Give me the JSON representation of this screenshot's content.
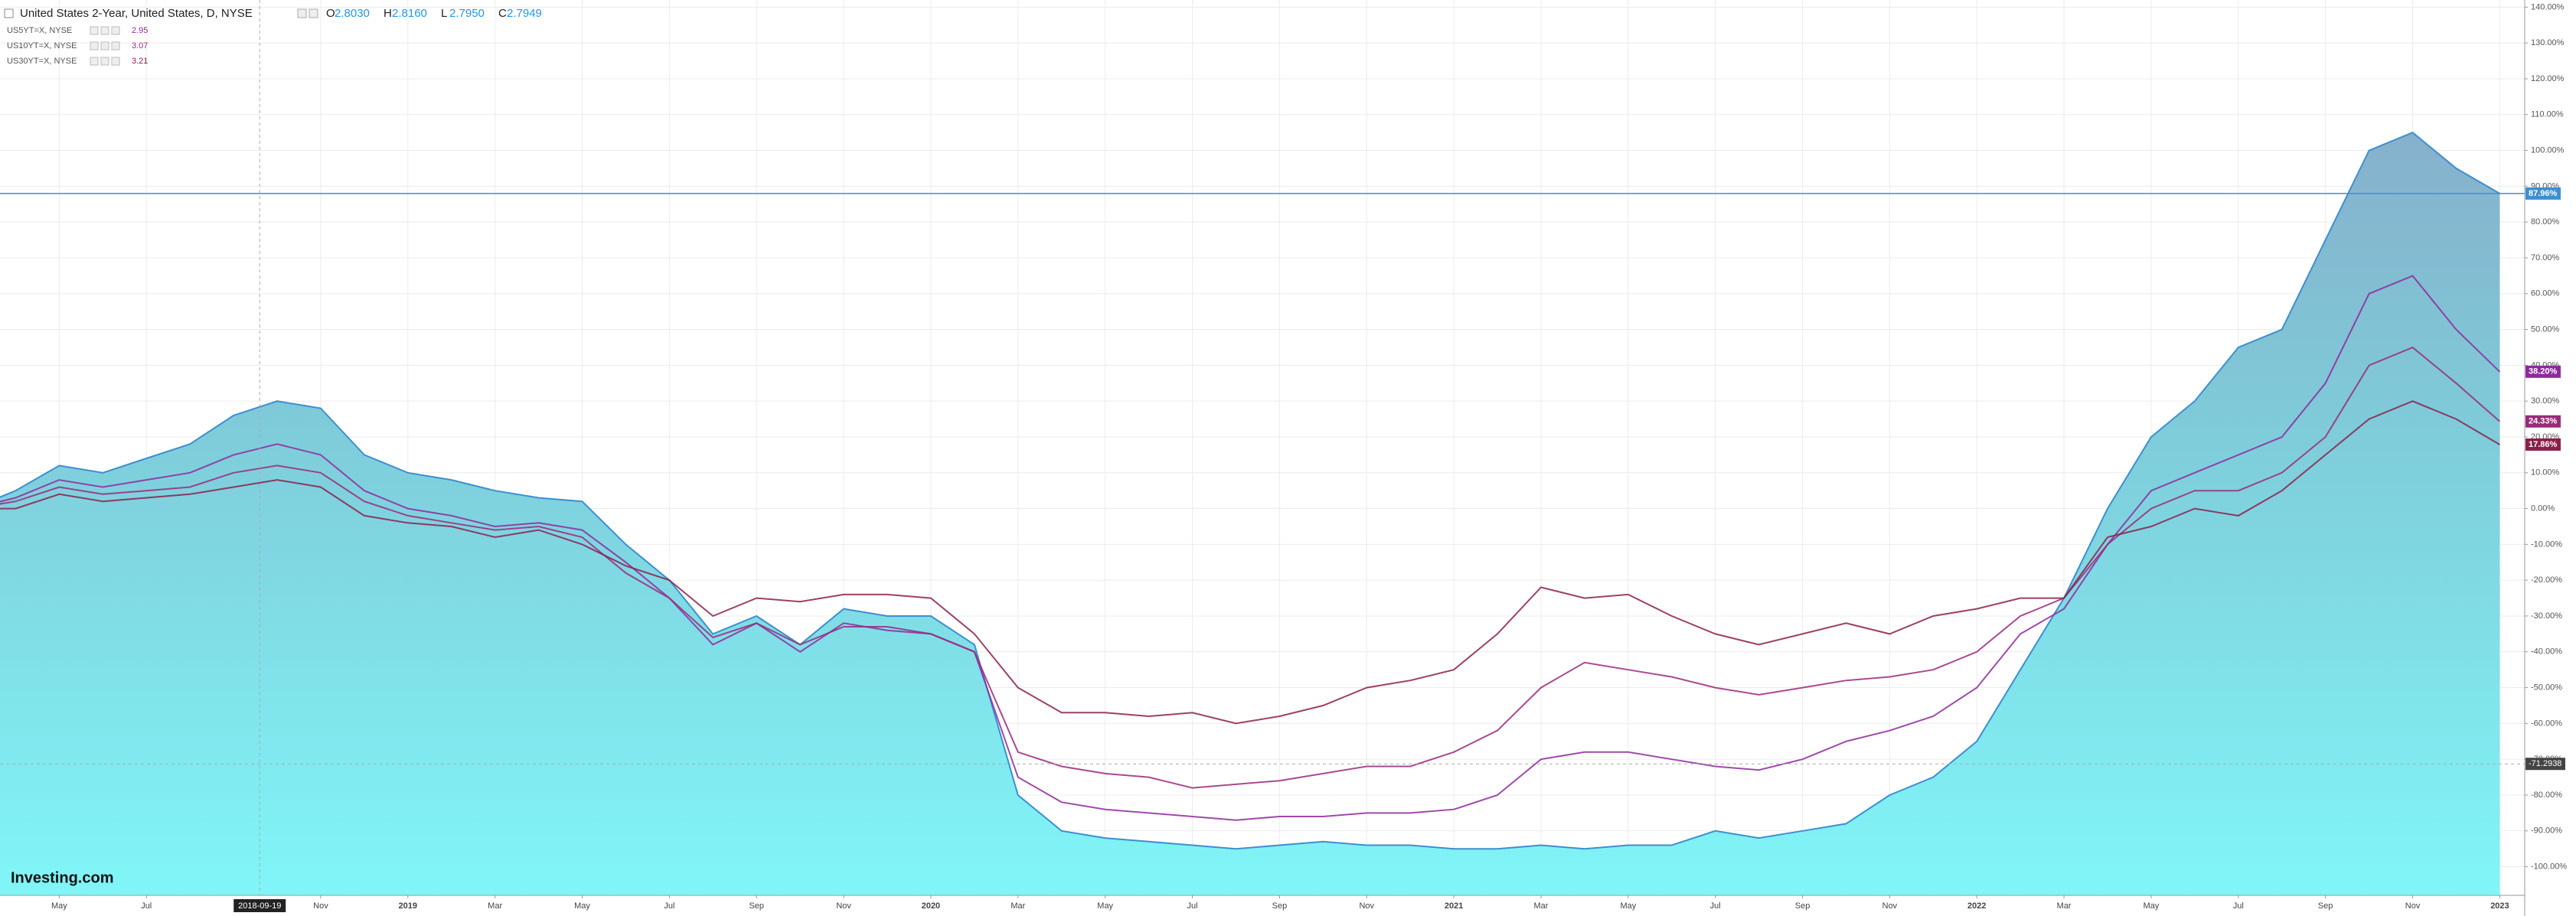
{
  "chart_data": {
    "type": "area",
    "title": "United States 2-Year, United States, D, NYSE",
    "ohlc": [
      {
        "key": "O",
        "value": "2.8030"
      },
      {
        "key": "H",
        "value": "2.8160"
      },
      {
        "key": "L",
        "value": "2.7950"
      },
      {
        "key": "C",
        "value": "2.7949"
      }
    ],
    "logo": "Investing.com",
    "categories": [
      null,
      null,
      "May",
      null,
      "Jul",
      null,
      null,
      null,
      "Nov",
      null,
      "2019",
      null,
      "Mar",
      null,
      "May",
      null,
      "Jul",
      null,
      "Sep",
      null,
      "Nov",
      null,
      "2020",
      null,
      "Mar",
      null,
      "May",
      null,
      "Jul",
      null,
      "Sep",
      null,
      "Nov",
      null,
      "2021",
      null,
      "Mar",
      null,
      "May",
      null,
      "Jul",
      null,
      "Sep",
      null,
      "Nov",
      null,
      "2022",
      null,
      "Mar",
      null,
      "May",
      null,
      "Jul",
      null,
      "Sep",
      null,
      "Nov",
      null,
      "2023"
    ],
    "ylim": [
      -108,
      142
    ],
    "yticks": [
      {
        "value": 140,
        "label": "140.00%"
      },
      {
        "value": 130,
        "label": "130.00%"
      },
      {
        "value": 120,
        "label": "120.00%"
      },
      {
        "value": 110,
        "label": "110.00%"
      },
      {
        "value": 100,
        "label": "100.00%"
      },
      {
        "value": 90,
        "label": "90.00%"
      },
      {
        "value": 80,
        "label": "80.00%"
      },
      {
        "value": 70,
        "label": "70.00%"
      },
      {
        "value": 60,
        "label": "60.00%"
      },
      {
        "value": 50,
        "label": "50.00%"
      },
      {
        "value": 40,
        "label": "40.00%"
      },
      {
        "value": 30,
        "label": "30.00%"
      },
      {
        "value": 20,
        "label": "20.00%"
      },
      {
        "value": 10,
        "label": "10.00%"
      },
      {
        "value": 0,
        "label": "0.00%"
      },
      {
        "value": -10,
        "label": "-10.00%"
      },
      {
        "value": -20,
        "label": "-20.00%"
      },
      {
        "value": -30,
        "label": "-30.00%"
      },
      {
        "value": -40,
        "label": "-40.00%"
      },
      {
        "value": -50,
        "label": "-50.00%"
      },
      {
        "value": -60,
        "label": "-60.00%"
      },
      {
        "value": -70,
        "label": "-70.00%"
      },
      {
        "value": -80,
        "label": "-80.00%"
      },
      {
        "value": -90,
        "label": "-90.00%"
      },
      {
        "value": -100,
        "label": "-100.00%"
      }
    ],
    "grid": true,
    "crosshair": {
      "x": "2018-09-19",
      "y": -71.2938
    },
    "series": [
      {
        "kind": "area",
        "color": "#3d8fd0",
        "values": [
          0,
          5,
          12,
          10,
          14,
          18,
          26,
          30,
          28,
          15,
          10,
          8,
          5,
          3,
          2,
          -10,
          -20,
          -35,
          -30,
          -38,
          -28,
          -30,
          -30,
          -38,
          -80,
          -90,
          -92,
          -93,
          -94,
          -95,
          -94,
          -93,
          -94,
          -94,
          -95,
          -95,
          -94,
          -95,
          -94,
          -94,
          -90,
          -92,
          -90,
          -88,
          -80,
          -75,
          -65,
          -45,
          -25,
          0,
          20,
          30,
          45,
          50,
          75,
          100,
          105,
          95,
          87.96
        ],
        "value_labels": [
          null,
          null,
          null,
          null,
          null,
          null,
          null,
          null,
          null,
          null,
          null,
          null,
          null,
          null,
          null,
          null,
          null,
          null,
          null,
          null,
          null,
          null,
          null,
          null,
          null,
          null,
          null,
          null,
          null,
          null,
          null,
          null,
          null,
          null,
          null,
          null,
          null,
          null,
          null,
          null,
          null,
          null,
          null,
          null,
          null,
          null,
          null,
          null,
          null,
          null,
          null,
          null,
          null,
          null,
          null,
          null,
          null,
          null,
          "87.96%"
        ]
      },
      {
        "kind": "line",
        "name": "US5YT=X, NYSE",
        "quote": 2.95,
        "color": "#8e2a9c",
        "values": [
          0,
          3,
          8,
          6,
          8,
          10,
          15,
          18,
          15,
          5,
          0,
          -2,
          -5,
          -4,
          -6,
          -15,
          -25,
          -38,
          -32,
          -40,
          -32,
          -34,
          -35,
          -40,
          -75,
          -82,
          -84,
          -85,
          -86,
          -87,
          -86,
          -86,
          -85,
          -85,
          -84,
          -80,
          -70,
          -68,
          -68,
          -70,
          -72,
          -73,
          -70,
          -65,
          -62,
          -58,
          -50,
          -35,
          -28,
          -10,
          5,
          10,
          15,
          20,
          35,
          60,
          65,
          50,
          38.2
        ],
        "value_labels": [
          null,
          null,
          null,
          null,
          null,
          null,
          null,
          null,
          null,
          null,
          null,
          null,
          null,
          null,
          null,
          null,
          null,
          null,
          null,
          null,
          null,
          null,
          null,
          null,
          null,
          null,
          null,
          null,
          null,
          null,
          null,
          null,
          null,
          null,
          null,
          null,
          null,
          null,
          null,
          null,
          null,
          null,
          null,
          null,
          null,
          null,
          null,
          null,
          null,
          null,
          null,
          null,
          null,
          null,
          null,
          null,
          null,
          null,
          "38.20%"
        ]
      },
      {
        "kind": "line",
        "name": "US10YT=X, NYSE",
        "quote": 3.07,
        "color": "#9a2a7a",
        "values": [
          0,
          2,
          6,
          4,
          5,
          6,
          10,
          12,
          10,
          2,
          -2,
          -4,
          -6,
          -5,
          -8,
          -18,
          -25,
          -36,
          -32,
          -38,
          -33,
          -33,
          -35,
          -40,
          -68,
          -72,
          -74,
          -75,
          -78,
          -77,
          -76,
          -74,
          -72,
          -72,
          -68,
          -62,
          -50,
          -43,
          -45,
          -47,
          -50,
          -52,
          -50,
          -48,
          -47,
          -45,
          -40,
          -30,
          -25,
          -10,
          0,
          5,
          5,
          10,
          20,
          40,
          45,
          35,
          24.33
        ],
        "value_labels": [
          null,
          null,
          null,
          null,
          null,
          null,
          null,
          null,
          null,
          null,
          null,
          null,
          null,
          null,
          null,
          null,
          null,
          null,
          null,
          null,
          null,
          null,
          null,
          null,
          null,
          null,
          null,
          null,
          null,
          null,
          null,
          null,
          null,
          null,
          null,
          null,
          null,
          null,
          null,
          null,
          null,
          null,
          null,
          null,
          null,
          null,
          null,
          null,
          null,
          null,
          null,
          null,
          null,
          null,
          null,
          null,
          null,
          null,
          "24.33%"
        ]
      },
      {
        "kind": "line",
        "name": "US30YT=X, NYSE",
        "quote": 3.21,
        "color": "#8c1f4a",
        "values": [
          0,
          0,
          4,
          2,
          3,
          4,
          6,
          8,
          6,
          -2,
          -4,
          -5,
          -8,
          -6,
          -10,
          -16,
          -20,
          -30,
          -25,
          -26,
          -24,
          -24,
          -25,
          -35,
          -50,
          -57,
          -57,
          -58,
          -57,
          -60,
          -58,
          -55,
          -50,
          -48,
          -45,
          -35,
          -22,
          -25,
          -24,
          -30,
          -35,
          -38,
          -35,
          -32,
          -35,
          -30,
          -28,
          -25,
          -25,
          -8,
          -5,
          0,
          -2,
          5,
          15,
          25,
          30,
          25,
          17.86
        ],
        "value_labels": [
          null,
          null,
          null,
          null,
          null,
          null,
          null,
          null,
          null,
          null,
          null,
          null,
          null,
          null,
          null,
          null,
          null,
          null,
          null,
          null,
          null,
          null,
          null,
          null,
          null,
          null,
          null,
          null,
          null,
          null,
          null,
          null,
          null,
          null,
          null,
          null,
          null,
          null,
          null,
          null,
          null,
          null,
          null,
          null,
          null,
          null,
          null,
          null,
          null,
          null,
          null,
          null,
          null,
          null,
          null,
          null,
          null,
          null,
          "17.86%"
        ]
      }
    ]
  }
}
